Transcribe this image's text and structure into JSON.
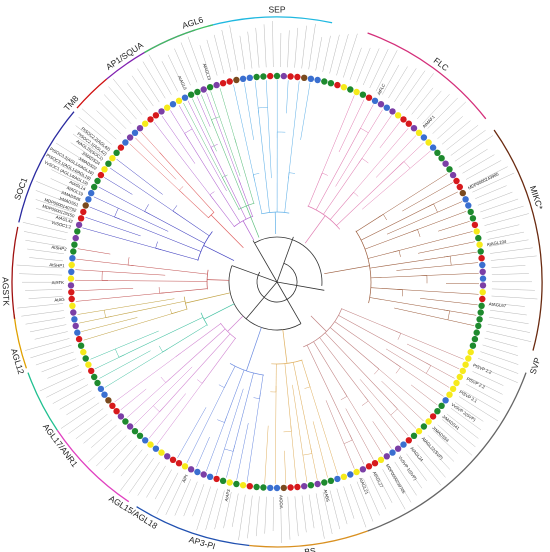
{
  "figure": {
    "palette": {
      "red": "#d7191c",
      "yellow": "#f6ea1a",
      "green": "#1e8a2e",
      "purple": "#7b3fa6",
      "blue": "#3a6fd0",
      "brown": "#7a4a1e",
      "black": "#111111"
    }
  },
  "clades": [
    {
      "id": "sep",
      "label": "SEP",
      "color": "#1fb8e0",
      "branch": "#5fb0e8"
    },
    {
      "id": "flc",
      "label": "FLC",
      "color": "#d42f7a",
      "branch": "#e07ab0"
    },
    {
      "id": "mike",
      "label": "MIKC*",
      "color": "#6a2a10",
      "branch": "#9a5a3a"
    },
    {
      "id": "svp",
      "label": "SVP",
      "color": "#666666",
      "branch": "#c08080"
    },
    {
      "id": "bs",
      "label": "BS",
      "color": "#d99020",
      "branch": "#e0b060"
    },
    {
      "id": "ap3pi",
      "label": "AP3-PI",
      "color": "#2050b0",
      "branch": "#6a8ae0"
    },
    {
      "id": "agl15",
      "label": "AGL15/AGL18",
      "color": "#e040c0",
      "branch": "#d080d0"
    },
    {
      "id": "agl17",
      "label": "AGL17/ANR1",
      "color": "#20c090",
      "branch": "#40c0a0"
    },
    {
      "id": "agl12",
      "label": "AGL12",
      "color": "#e0a000",
      "branch": "#c0a040"
    },
    {
      "id": "agstk",
      "label": "AGSTK",
      "color": "#a01010",
      "branch": "#c05050"
    },
    {
      "id": "soc1",
      "label": "SOC1",
      "color": "#2a2aa0",
      "branch": "#4040c0"
    },
    {
      "id": "tm8",
      "label": "TM8",
      "color": "#d01010",
      "branch": "#e06060"
    },
    {
      "id": "ap1",
      "label": "AP1/SQUA",
      "color": "#8020b0",
      "branch": "#b060d0"
    },
    {
      "id": "agl6",
      "label": "AGL6",
      "color": "#40c060",
      "branch": "#60c080"
    }
  ],
  "legible_leaves": {
    "svp": [
      "PtSVP 2.2",
      "PtSVP 2.3",
      "PtSVP 2.1",
      "VvSVP 2(SVP)",
      "JrMADS41",
      "JrMADS54",
      "AtAGL22(SVP)",
      "AtAGL24",
      "VvSVP 1(SVP)",
      "MDP0000239705",
      "AtAGL27",
      "AtAGL21"
    ],
    "soc1": [
      "VvSOC1.2",
      "AtAGL42",
      "MDP0000129150",
      "MDP0000140752",
      "JrMADS51",
      "JrMADS26",
      "AtAGL19",
      "AtAGL14",
      "VvSOC1 (AGL14/AGL19)",
      "PtSOC3.1(AGL14/AGL19)",
      "PtSOC3.2(AGL14/AGL19)",
      "JrMADS22",
      "JrMADS24",
      "AtAGL20(SOC1)",
      "PtSOC2.1(AGL42)",
      "PtSOC2.2(AGL42)"
    ],
    "agl6": [
      "AtAGL6",
      "AtAGL13"
    ],
    "flc": [
      "AtFLC",
      "AtMAF1"
    ],
    "mike": [
      "MDP0000243985",
      "AtAGL104",
      "AtAGL67"
    ],
    "agstk": [
      "AtAG",
      "AtSTK",
      "AtSHP1",
      "AtSHP2"
    ],
    "ap3pi": [
      "AtAP3",
      "AtPI"
    ],
    "bs": [
      "AtABS",
      "AtGOA"
    ]
  }
}
